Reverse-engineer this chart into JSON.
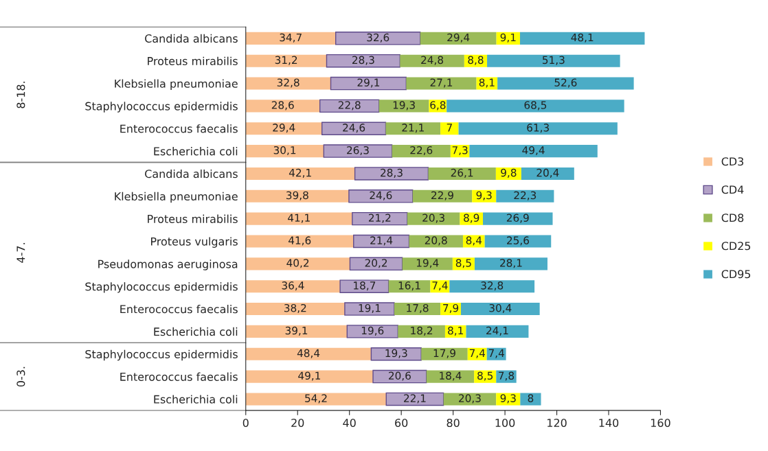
{
  "chart_data": {
    "type": "bar",
    "orientation": "horizontal",
    "stacked": true,
    "categories": [
      "Candida albicans",
      "Proteus mirabilis",
      "Klebsiella pneumoniae",
      "Staphylococcus epidermidis",
      "Enterococcus faecalis",
      "Escherichia coli",
      "Candida albicans",
      "Klebsiella pneumoniae",
      "Proteus mirabilis",
      "Proteus vulgaris",
      "Pseudomonas aeruginosa",
      "Staphylococcus epidermidis",
      "Enterococcus faecalis",
      "Escherichia coli",
      "Staphylococcus epidermidis",
      "Enterococcus faecalis",
      "Escherichia coli"
    ],
    "series": [
      {
        "name": "CD3",
        "color": "#fac090",
        "values": [
          34.7,
          31.2,
          32.8,
          28.6,
          29.4,
          30.1,
          42.1,
          39.8,
          41.1,
          41.6,
          40.2,
          36.4,
          38.2,
          39.1,
          48.4,
          49.1,
          54.2
        ],
        "value_labels": [
          "34,7",
          "31,2",
          "32,8",
          "28,6",
          "29,4",
          "30,1",
          "42,1",
          "39,8",
          "41,1",
          "41,6",
          "40,2",
          "36,4",
          "38,2",
          "39,1",
          "48,4",
          "49,1",
          "54,2"
        ]
      },
      {
        "name": "CD4",
        "color": "#b3a2c7",
        "values": [
          32.6,
          28.3,
          29.1,
          22.8,
          24.6,
          26.3,
          28.3,
          24.6,
          21.2,
          21.4,
          20.2,
          18.7,
          19.1,
          19.6,
          19.3,
          20.6,
          22.1
        ],
        "value_labels": [
          "32,6",
          "28,3",
          "29,1",
          "22,8",
          "24,6",
          "26,3",
          "28,3",
          "24,6",
          "21,2",
          "21,4",
          "20,2",
          "18,7",
          "19,1",
          "19,6",
          "19,3",
          "20,6",
          "22,1"
        ]
      },
      {
        "name": "CD8",
        "color": "#9bbb59",
        "values": [
          29.4,
          24.8,
          27.1,
          19.3,
          21.1,
          22.6,
          26.1,
          22.9,
          20.3,
          20.8,
          19.4,
          16.1,
          17.8,
          18.2,
          17.9,
          18.4,
          20.3
        ],
        "value_labels": [
          "29,4",
          "24,8",
          "27,1",
          "19,3",
          "21,1",
          "22,6",
          "26,1",
          "22,9",
          "20,3",
          "20,8",
          "19,4",
          "16,1",
          "17,8",
          "18,2",
          "17,9",
          "18,4",
          "20,3"
        ]
      },
      {
        "name": "CD25",
        "color": "#ffff00",
        "values": [
          9.1,
          8.8,
          8.1,
          6.8,
          7,
          7.3,
          9.8,
          9.3,
          8.9,
          8.4,
          8.5,
          7.4,
          7.9,
          8.1,
          7.4,
          8.5,
          9.3
        ],
        "value_labels": [
          "9,1",
          "8,8",
          "8,1",
          "6,8",
          "7",
          "7,3",
          "9,8",
          "9,3",
          "8,9",
          "8,4",
          "8,5",
          "7,4",
          "7,9",
          "8,1",
          "7,4",
          "8,5",
          "9,3"
        ]
      },
      {
        "name": "CD95",
        "color": "#4bacc6",
        "values": [
          48.1,
          51.3,
          52.6,
          68.5,
          61.3,
          49.4,
          20.4,
          22.3,
          26.9,
          25.6,
          28.1,
          32.8,
          30.4,
          24.1,
          7.4,
          7.8,
          8
        ],
        "value_labels": [
          "48,1",
          "51,3",
          "52,6",
          "68,5",
          "61,3",
          "49,4",
          "20,4",
          "22,3",
          "26,9",
          "25,6",
          "28,1",
          "32,8",
          "30,4",
          "24,1",
          "7,4",
          "7,8",
          "8"
        ]
      }
    ],
    "annotations": [
      "8-18.",
      "4-7.",
      "0-3."
    ],
    "xlim": [
      0,
      160
    ],
    "xticks": [
      0,
      20,
      40,
      60,
      80,
      100,
      120,
      140,
      160
    ],
    "grid": false,
    "legend": "right"
  }
}
